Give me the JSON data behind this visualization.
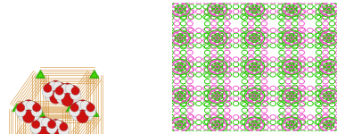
{
  "figsize": [
    3.78,
    1.5
  ],
  "dpi": 100,
  "background": "#ffffff",
  "left_panel": {
    "orange_color": "#d4933a",
    "green_color": "#44dd00",
    "green_dark": "#229900",
    "red_color": "#cc1111",
    "white_color": "#e8e8e8",
    "gray_color": "#aaaaaa"
  },
  "right_panel": {
    "green_color": "#22cc00",
    "pink_color": "#ee55cc",
    "grid_nx": 4,
    "grid_ny": 4
  }
}
